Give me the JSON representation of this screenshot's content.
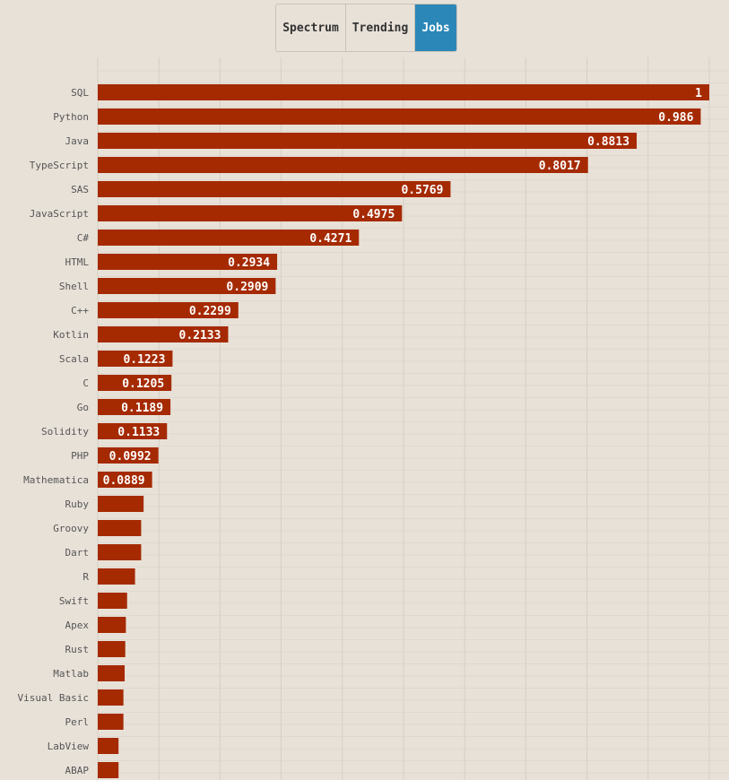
{
  "tabs": [
    {
      "label": "Spectrum",
      "active": false
    },
    {
      "label": "Trending",
      "active": false
    },
    {
      "label": "Jobs",
      "active": true
    }
  ],
  "colors": {
    "bar": "#a52a02",
    "background": "#e8e1d8",
    "grid": "#d6cfc5",
    "active_tab": "#2b87b8"
  },
  "chart_data": {
    "type": "bar",
    "orientation": "horizontal",
    "grid": true,
    "xlim": [
      0,
      1
    ],
    "categories": [
      "SQL",
      "Python",
      "Java",
      "TypeScript",
      "SAS",
      "JavaScript",
      "C#",
      "HTML",
      "Shell",
      "C++",
      "Kotlin",
      "Scala",
      "C",
      "Go",
      "Solidity",
      "PHP",
      "Mathematica",
      "Ruby",
      "Groovy",
      "Dart",
      "R",
      "Swift",
      "Apex",
      "Rust",
      "Matlab",
      "Visual Basic",
      "Perl",
      "LabView",
      "ABAP"
    ],
    "values": [
      1,
      0.986,
      0.8813,
      0.8017,
      0.5769,
      0.4975,
      0.4271,
      0.2934,
      0.2909,
      0.2299,
      0.2133,
      0.1223,
      0.1205,
      0.1189,
      0.1133,
      0.0992,
      0.0889,
      0.075,
      0.071,
      0.071,
      0.061,
      0.048,
      0.046,
      0.045,
      0.044,
      0.042,
      0.042,
      0.034,
      0.034
    ],
    "value_labels": [
      "1",
      "0.986",
      "0.8813",
      "0.8017",
      "0.5769",
      "0.4975",
      "0.4271",
      "0.2934",
      "0.2909",
      "0.2299",
      "0.2133",
      "0.1223",
      "0.1205",
      "0.1189",
      "0.1133",
      "0.0992",
      "0.0889",
      "",
      "",
      "",
      "",
      "",
      "",
      "",
      "",
      "",
      "",
      "",
      ""
    ]
  }
}
